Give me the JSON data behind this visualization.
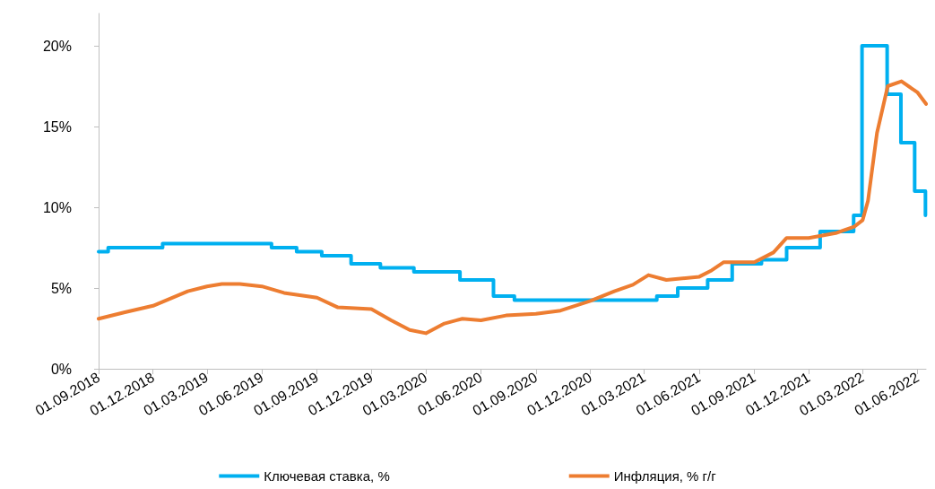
{
  "chart_data": {
    "type": "line",
    "xlim": [
      "2018-09-01",
      "2022-06-15"
    ],
    "xticks": [
      {
        "value": "2018-09-01",
        "label": "01.09.2018"
      },
      {
        "value": "2018-12-01",
        "label": "01.12.2018"
      },
      {
        "value": "2019-03-01",
        "label": "01.03.2019"
      },
      {
        "value": "2019-06-01",
        "label": "01.06.2019"
      },
      {
        "value": "2019-09-01",
        "label": "01.09.2019"
      },
      {
        "value": "2019-12-01",
        "label": "01.12.2019"
      },
      {
        "value": "2020-03-01",
        "label": "01.03.2020"
      },
      {
        "value": "2020-06-01",
        "label": "01.06.2020"
      },
      {
        "value": "2020-09-01",
        "label": "01.09.2020"
      },
      {
        "value": "2020-12-01",
        "label": "01.12.2020"
      },
      {
        "value": "2021-03-01",
        "label": "01.03.2021"
      },
      {
        "value": "2021-06-01",
        "label": "01.06.2021"
      },
      {
        "value": "2021-09-01",
        "label": "01.09.2021"
      },
      {
        "value": "2021-12-01",
        "label": "01.12.2021"
      },
      {
        "value": "2022-03-01",
        "label": "01.03.2022"
      },
      {
        "value": "2022-06-01",
        "label": "01.06.2022"
      }
    ],
    "ylim": [
      0,
      22
    ],
    "yticks": [
      {
        "value": 0,
        "label": "0%"
      },
      {
        "value": 5,
        "label": "5%"
      },
      {
        "value": 10,
        "label": "10%"
      },
      {
        "value": 15,
        "label": "15%"
      },
      {
        "value": 20,
        "label": "20%"
      }
    ],
    "grid": false,
    "legend": "bottom",
    "marker": "none",
    "line_style": "solid",
    "series": [
      {
        "name": "Ключевая ставка, %",
        "type": "step",
        "color": "#00b0f0",
        "x": [
          "2018-09-01",
          "2018-09-17",
          "2018-12-17",
          "2019-06-17",
          "2019-07-29",
          "2019-09-09",
          "2019-10-28",
          "2019-12-16",
          "2020-02-10",
          "2020-04-27",
          "2020-06-22",
          "2020-07-27",
          "2021-03-22",
          "2021-04-26",
          "2021-06-15",
          "2021-07-26",
          "2021-09-13",
          "2021-10-25",
          "2021-12-20",
          "2022-02-14",
          "2022-02-28",
          "2022-04-11",
          "2022-05-04",
          "2022-05-27",
          "2022-06-14",
          "2022-06-15"
        ],
        "values": [
          7.25,
          7.5,
          7.75,
          7.5,
          7.25,
          7,
          6.5,
          6.25,
          6,
          5.5,
          4.5,
          4.25,
          4.5,
          5,
          5.5,
          6.5,
          6.75,
          7.5,
          8.5,
          9.5,
          20,
          17,
          14,
          11,
          9.5,
          9.5
        ]
      },
      {
        "name": "Инфляция, % г/г",
        "type": "line",
        "color": "#ed7d31",
        "x": [
          "2018-09-01",
          "2018-10-15",
          "2018-12-01",
          "2019-01-28",
          "2019-03-01",
          "2019-03-26",
          "2019-04-25",
          "2019-06-01",
          "2019-07-08",
          "2019-09-01",
          "2019-10-06",
          "2019-12-01",
          "2020-01-03",
          "2020-02-03",
          "2020-03-01",
          "2020-04-01",
          "2020-05-01",
          "2020-06-01",
          "2020-07-13",
          "2020-09-01",
          "2020-10-12",
          "2020-12-01",
          "2021-01-10",
          "2021-02-10",
          "2021-03-08",
          "2021-04-07",
          "2021-06-01",
          "2021-06-22",
          "2021-07-12",
          "2021-09-01",
          "2021-10-03",
          "2021-10-25",
          "2021-12-01",
          "2022-01-15",
          "2022-02-15",
          "2022-03-01",
          "2022-03-10",
          "2022-03-25",
          "2022-04-12",
          "2022-05-05",
          "2022-06-01",
          "2022-06-15"
        ],
        "values": [
          3.1,
          3.5,
          3.9,
          4.8,
          5.1,
          5.25,
          5.25,
          5.1,
          4.7,
          4.4,
          3.8,
          3.7,
          3.0,
          2.4,
          2.2,
          2.8,
          3.1,
          3.0,
          3.3,
          3.4,
          3.6,
          4.2,
          4.8,
          5.2,
          5.8,
          5.5,
          5.7,
          6.1,
          6.6,
          6.6,
          7.2,
          8.1,
          8.1,
          8.4,
          8.8,
          9.2,
          10.4,
          14.6,
          17.5,
          17.8,
          17.1,
          16.4
        ]
      }
    ]
  }
}
